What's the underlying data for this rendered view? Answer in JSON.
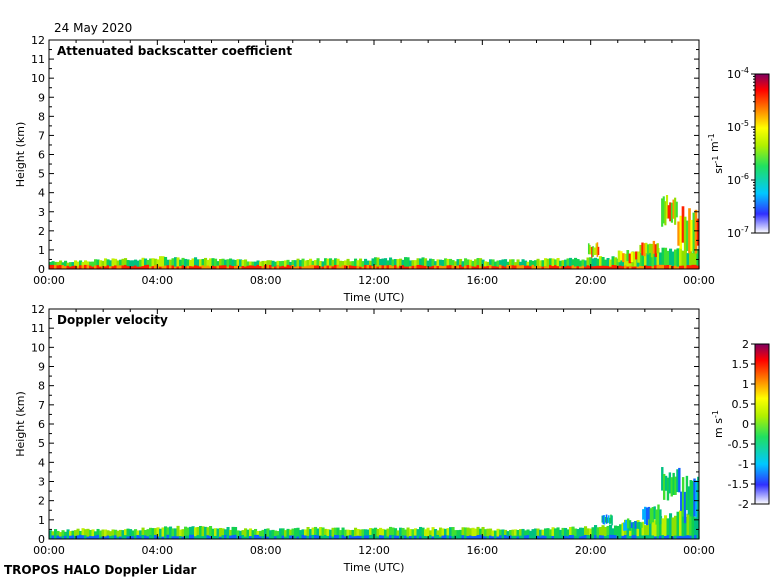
{
  "date_label": "24 May 2020",
  "footer_label": "TROPOS HALO Doppler Lidar",
  "chart_data": [
    {
      "type": "heatmap",
      "title": "Attenuated backscatter coefficient",
      "xlabel": "Time (UTC)",
      "ylabel": "Height (km)",
      "x_ticks": [
        "00:00",
        "04:00",
        "08:00",
        "12:00",
        "16:00",
        "20:00",
        "00:00"
      ],
      "xlim_hours": [
        0,
        24
      ],
      "y_ticks": [
        "0",
        "1",
        "2",
        "3",
        "4",
        "5",
        "6",
        "7",
        "8",
        "9",
        "10",
        "11",
        "12"
      ],
      "ylim": [
        0,
        12
      ],
      "colorbar": {
        "scale": "log",
        "range": [
          1e-07,
          0.0001
        ],
        "ticks": [
          {
            "value": -7,
            "base": "10",
            "exp": "-7"
          },
          {
            "value": -6,
            "base": "10",
            "exp": "-6"
          },
          {
            "value": -5,
            "base": "10",
            "exp": "-5"
          },
          {
            "value": -4,
            "base": "10",
            "exp": "-4"
          }
        ],
        "unit_parts": [
          {
            "t": "sr",
            "exp": "-1"
          },
          {
            "t": " m",
            "exp": "-1"
          }
        ]
      },
      "layer_top_km": [
        0.4,
        0.45,
        0.5,
        0.55,
        0.6,
        0.55,
        0.5,
        0.45,
        0.45,
        0.5,
        0.5,
        0.5,
        0.55,
        0.55,
        0.5,
        0.5,
        0.45,
        0.45,
        0.5,
        0.55,
        0.6,
        0.8,
        1.0,
        1.0
      ],
      "elevated_features": [
        {
          "t_start": 19.9,
          "t_end": 20.3,
          "h_bottom": 0.6,
          "h_top": 1.4
        },
        {
          "t_start": 21.0,
          "t_end": 21.8,
          "h_bottom": 0.3,
          "h_top": 1.0
        },
        {
          "t_start": 21.8,
          "t_end": 22.5,
          "h_bottom": 0.6,
          "h_top": 1.6
        },
        {
          "t_start": 22.6,
          "t_end": 23.2,
          "h_bottom": 2.2,
          "h_top": 3.9
        },
        {
          "t_start": 23.2,
          "t_end": 24.0,
          "h_bottom": 0.8,
          "h_top": 3.3
        }
      ]
    },
    {
      "type": "heatmap",
      "title": "Doppler velocity",
      "xlabel": "Time (UTC)",
      "ylabel": "Height (km)",
      "x_ticks": [
        "00:00",
        "04:00",
        "08:00",
        "12:00",
        "16:00",
        "20:00",
        "00:00"
      ],
      "xlim_hours": [
        0,
        24
      ],
      "y_ticks": [
        "0",
        "1",
        "2",
        "3",
        "4",
        "5",
        "6",
        "7",
        "8",
        "9",
        "10",
        "11",
        "12"
      ],
      "ylim": [
        0,
        12
      ],
      "colorbar": {
        "scale": "linear",
        "range": [
          -2,
          2
        ],
        "ticks": [
          "2",
          "1.5",
          "1",
          "0.5",
          "0",
          "-0.5",
          "-1",
          "-1.5",
          "-2"
        ],
        "unit_parts": [
          {
            "t": "m s",
            "exp": "-1"
          }
        ]
      },
      "layer_top_km": [
        0.45,
        0.5,
        0.5,
        0.55,
        0.6,
        0.6,
        0.55,
        0.5,
        0.5,
        0.55,
        0.55,
        0.55,
        0.55,
        0.55,
        0.55,
        0.55,
        0.5,
        0.5,
        0.55,
        0.6,
        0.65,
        0.9,
        1.2,
        1.4
      ],
      "elevated_features": [
        {
          "t_start": 20.4,
          "t_end": 20.8,
          "h_bottom": 0.7,
          "h_top": 1.3
        },
        {
          "t_start": 21.2,
          "t_end": 21.9,
          "h_bottom": 0.4,
          "h_top": 1.1
        },
        {
          "t_start": 21.9,
          "t_end": 22.6,
          "h_bottom": 0.7,
          "h_top": 1.8
        },
        {
          "t_start": 22.6,
          "t_end": 23.3,
          "h_bottom": 2.0,
          "h_top": 3.8
        },
        {
          "t_start": 23.3,
          "t_end": 24.0,
          "h_bottom": 0.8,
          "h_top": 3.3
        }
      ]
    }
  ]
}
